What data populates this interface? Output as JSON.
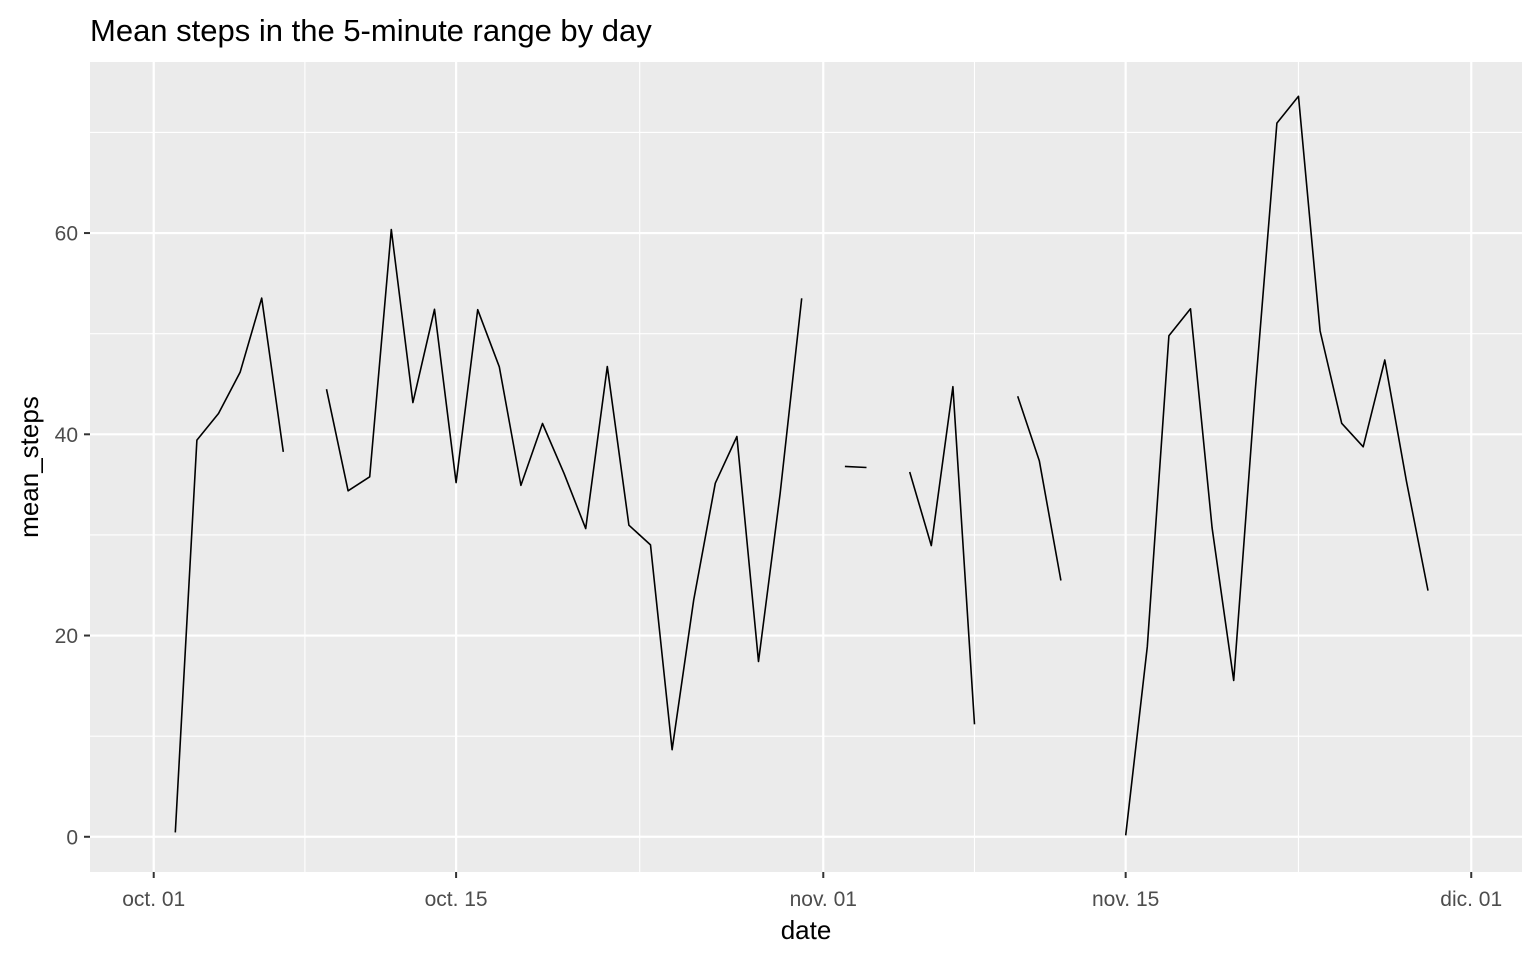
{
  "chart_data": {
    "type": "line",
    "title": "Mean steps in the 5-minute range by day",
    "xlabel": "date",
    "ylabel": "mean_steps",
    "x_tick_labels": [
      "oct. 01",
      "oct. 15",
      "nov. 01",
      "nov. 15",
      "dic. 01"
    ],
    "x_tick_days": [
      0,
      14,
      31,
      45,
      61
    ],
    "y_ticks": [
      0,
      20,
      40,
      60
    ],
    "y_tick_labels": [
      "0",
      "20",
      "40",
      "60"
    ],
    "xlim_days": [
      -2.95,
      63.35
    ],
    "ylim": [
      -3.5,
      77
    ],
    "grid": true,
    "background": "#ebebeb",
    "line_color": "#000000",
    "series": [
      {
        "name": "mean_steps",
        "x_days": [
          0,
          1,
          2,
          3,
          4,
          5,
          6,
          7,
          8,
          9,
          10,
          11,
          12,
          13,
          14,
          15,
          16,
          17,
          18,
          19,
          20,
          21,
          22,
          23,
          24,
          25,
          26,
          27,
          28,
          29,
          30,
          31,
          32,
          33,
          34,
          35,
          36,
          37,
          38,
          39,
          40,
          41,
          42,
          43,
          44,
          45,
          46,
          47,
          48,
          49,
          50,
          51,
          52,
          53,
          54,
          55,
          56,
          57,
          58,
          59,
          60
        ],
        "values": [
          null,
          0.44,
          39.42,
          42.07,
          46.16,
          53.54,
          38.25,
          null,
          44.48,
          34.38,
          35.78,
          60.35,
          43.15,
          52.42,
          35.2,
          52.38,
          46.71,
          34.92,
          41.07,
          36.09,
          30.63,
          46.74,
          30.97,
          29.01,
          8.65,
          23.53,
          35.14,
          39.78,
          17.42,
          34.09,
          53.52,
          null,
          36.81,
          36.7,
          null,
          36.25,
          28.94,
          44.73,
          11.18,
          null,
          43.78,
          37.38,
          25.47,
          null,
          null,
          0.14,
          18.89,
          49.79,
          52.47,
          30.7,
          15.53,
          44.4,
          70.93,
          73.59,
          50.27,
          41.09,
          38.76,
          47.38,
          35.36,
          24.47,
          null
        ]
      }
    ]
  }
}
